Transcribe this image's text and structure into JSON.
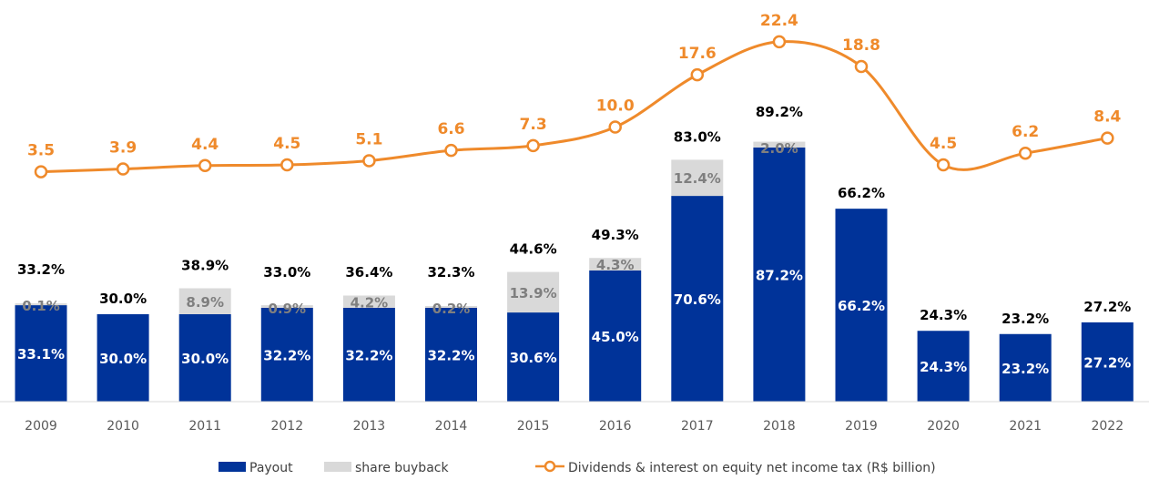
{
  "chart_data": {
    "type": "bar",
    "categories": [
      "2009",
      "2010",
      "2011",
      "2012",
      "2013",
      "2014",
      "2015",
      "2016",
      "2017",
      "2018",
      "2019",
      "2020",
      "2021",
      "2022"
    ],
    "series": [
      {
        "name": "Payout",
        "kind": "bar-stack",
        "values": [
          33.1,
          30.0,
          30.0,
          32.2,
          32.2,
          32.2,
          30.6,
          45.0,
          70.6,
          87.2,
          66.2,
          24.3,
          23.2,
          27.2
        ],
        "labels": [
          "33.1%",
          "30.0%",
          "30.0%",
          "32.2%",
          "32.2%",
          "32.2%",
          "30.6%",
          "45.0%",
          "70.6%",
          "87.2%",
          "66.2%",
          "24.3%",
          "23.2%",
          "27.2%"
        ]
      },
      {
        "name": "share buyback",
        "kind": "bar-stack",
        "values": [
          0.1,
          0,
          8.9,
          0.9,
          4.2,
          0.2,
          13.9,
          4.3,
          12.4,
          2.0,
          0,
          0,
          0,
          0
        ],
        "labels": [
          "0.1%",
          "",
          "8.9%",
          "0.9%",
          "4.2%",
          "0.2%",
          "13.9%",
          "4.3%",
          "12.4%",
          "2.0%",
          "",
          "",
          "",
          ""
        ]
      },
      {
        "name": "Dividends & interest on equity net income tax (R$ billion)",
        "kind": "line",
        "values": [
          3.5,
          3.9,
          4.4,
          4.5,
          5.1,
          6.6,
          7.3,
          10.0,
          17.6,
          22.4,
          18.8,
          4.5,
          6.2,
          8.4
        ],
        "labels": [
          "3.5",
          "3.9",
          "4.4",
          "4.5",
          "5.1",
          "6.6",
          "7.3",
          "10.0",
          "17.6",
          "22.4",
          "18.8",
          "4.5",
          "6.2",
          "8.4"
        ]
      }
    ],
    "totals": {
      "values": [
        33.2,
        30.0,
        38.9,
        33.0,
        36.4,
        32.3,
        44.6,
        49.3,
        83.0,
        89.2,
        66.2,
        24.3,
        23.2,
        27.2
      ],
      "labels": [
        "33.2%",
        "30.0%",
        "38.9%",
        "33.0%",
        "36.4%",
        "32.3%",
        "44.6%",
        "49.3%",
        "83.0%",
        "89.2%",
        "66.2%",
        "24.3%",
        "23.2%",
        "27.2%"
      ]
    },
    "title": "",
    "xlabel": "",
    "ylabel": "",
    "ylim_bars": [
      0,
      100
    ],
    "grid": false,
    "legend_position": "bottom",
    "colors": {
      "payout": "#003399",
      "buyback": "#d9d9d9",
      "line": "#ef8a2b",
      "total_label": "#000000",
      "buyback_label": "#7f7f7f"
    }
  },
  "legend": {
    "payout": "Payout",
    "buyback": "share buyback",
    "line": "Dividends & interest on equity net income tax (R$ billion)"
  }
}
